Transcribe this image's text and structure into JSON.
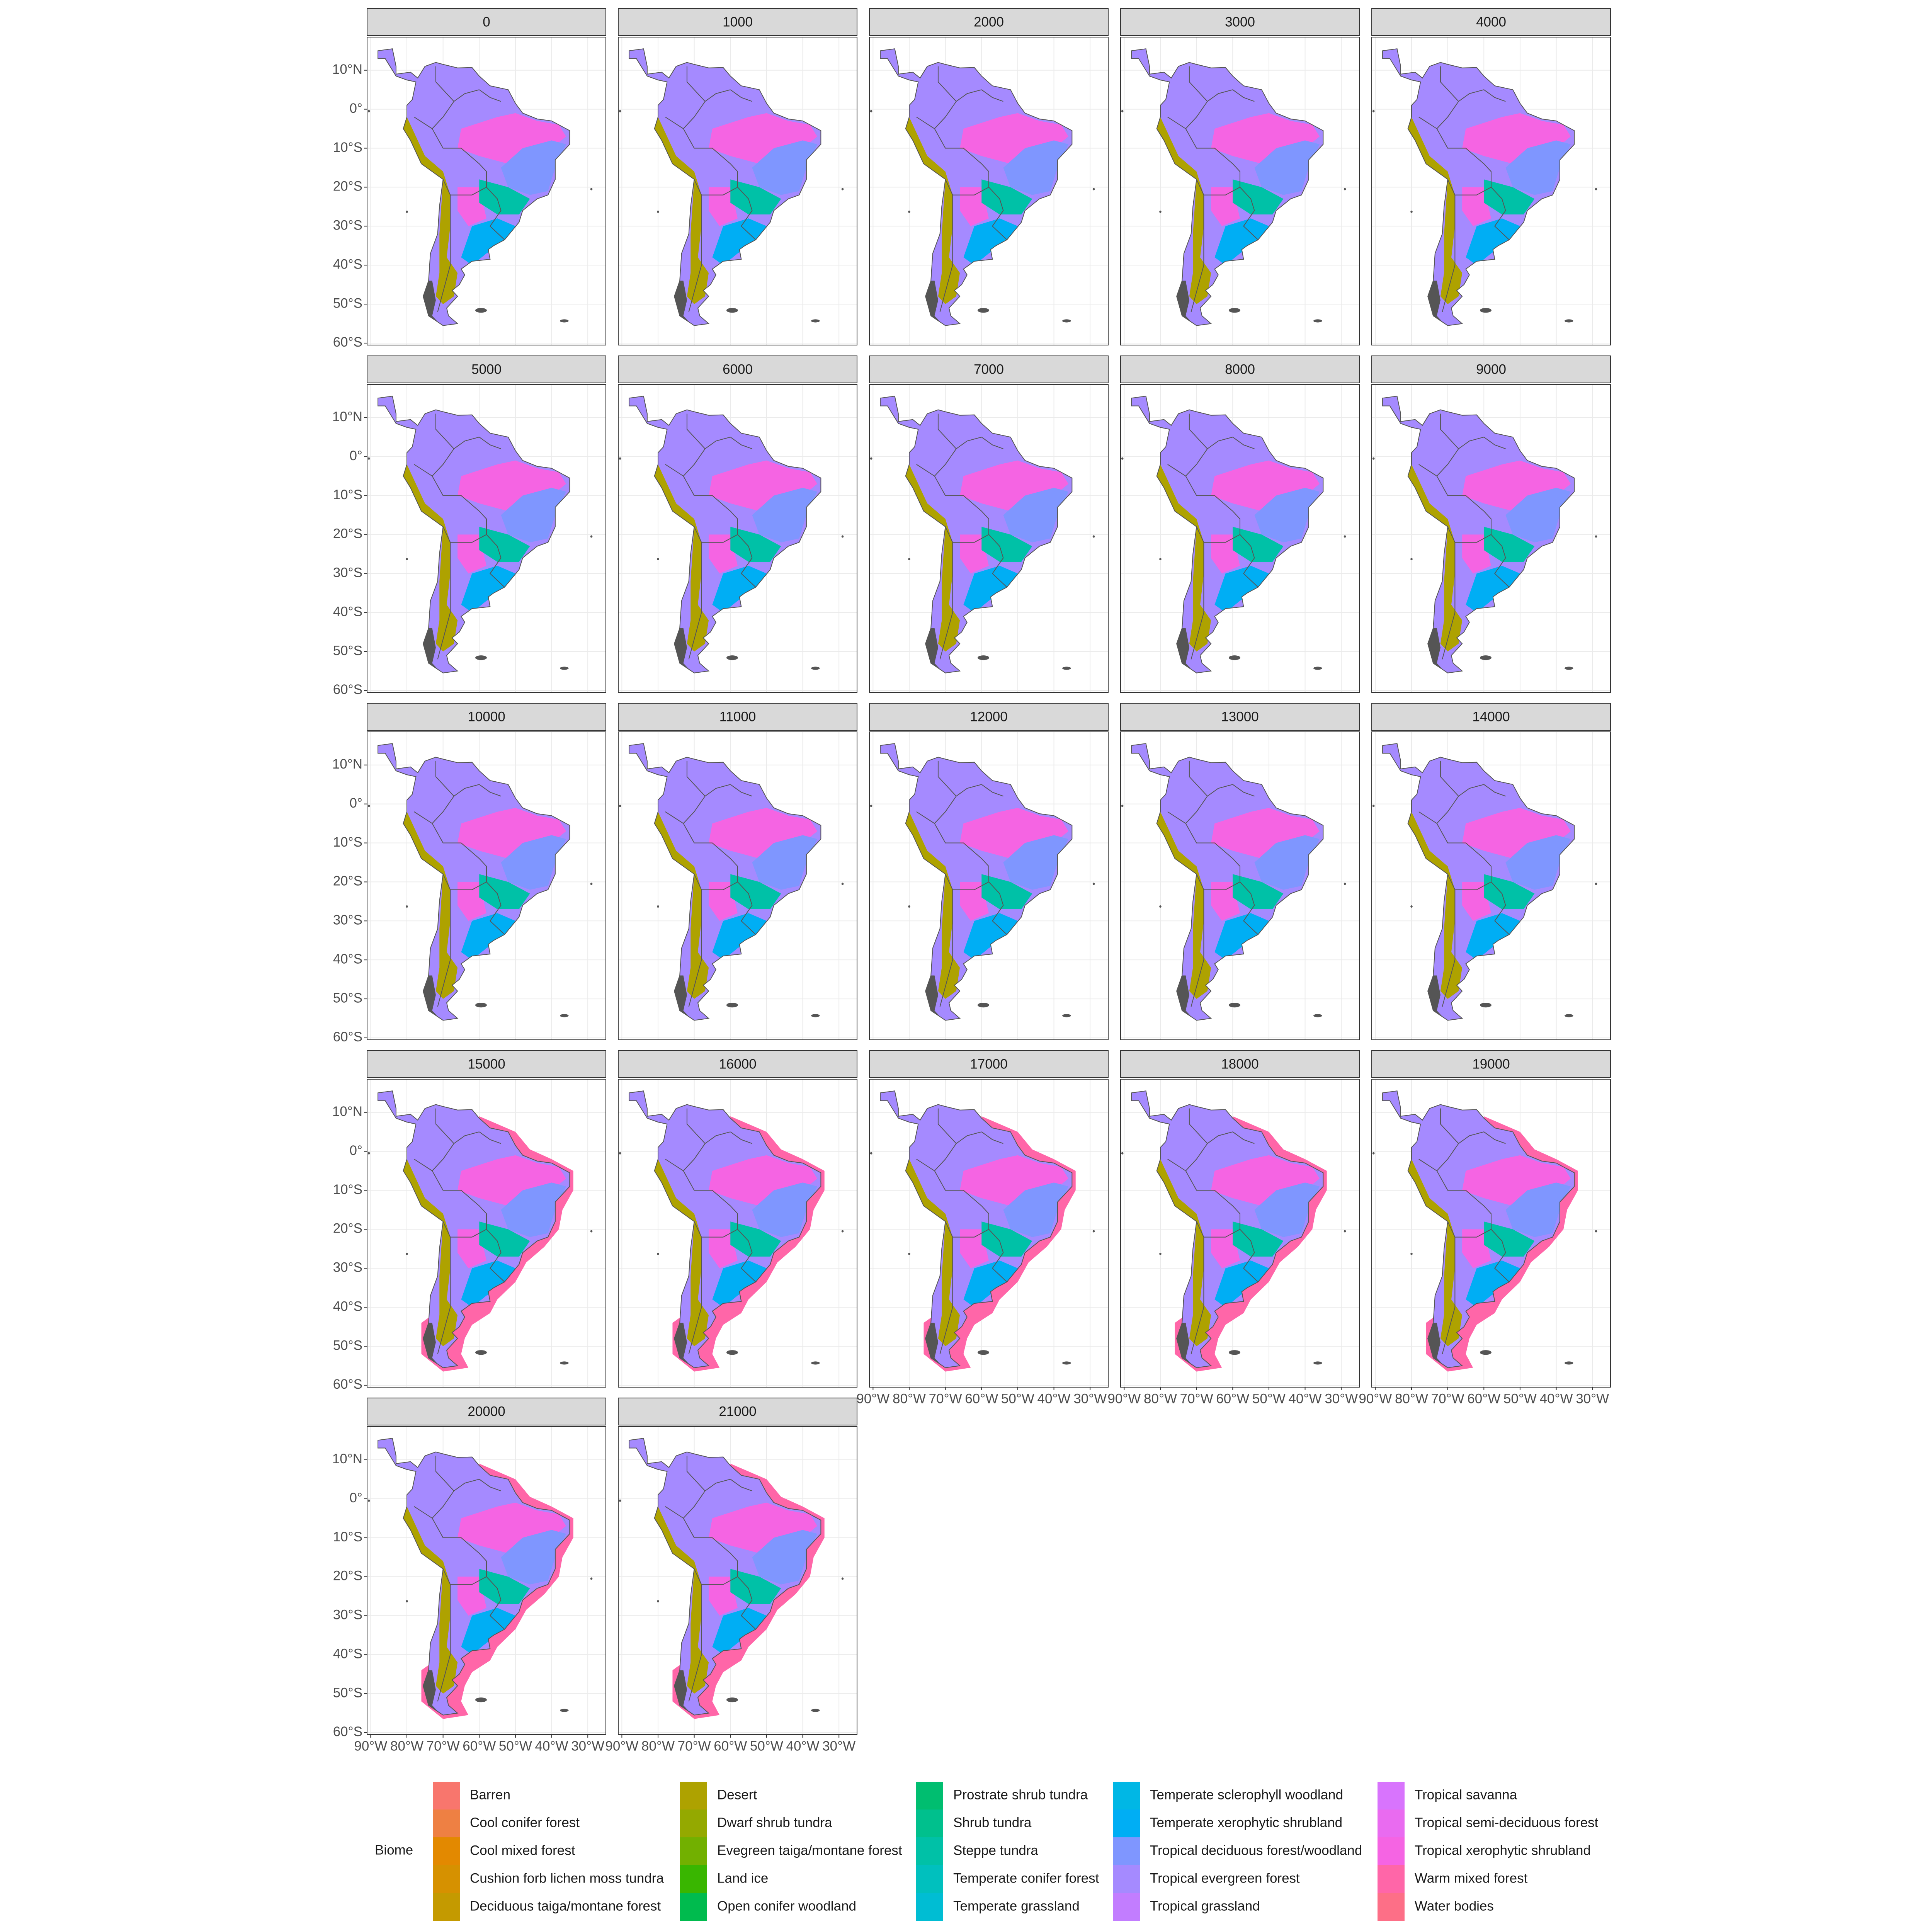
{
  "chart_data": {
    "type": "facet-map",
    "facets": [
      "0",
      "1000",
      "2000",
      "3000",
      "4000",
      "5000",
      "6000",
      "7000",
      "8000",
      "9000",
      "10000",
      "11000",
      "12000",
      "13000",
      "14000",
      "15000",
      "16000",
      "17000",
      "18000",
      "19000",
      "20000",
      "21000"
    ],
    "xlim": [
      -91,
      -25
    ],
    "ylim": [
      -60.5,
      18.5
    ],
    "xticks": [
      {
        "value": -90,
        "label": "90°W"
      },
      {
        "value": -80,
        "label": "80°W"
      },
      {
        "value": -70,
        "label": "70°W"
      },
      {
        "value": -60,
        "label": "60°W"
      },
      {
        "value": -50,
        "label": "50°W"
      },
      {
        "value": -40,
        "label": "40°W"
      },
      {
        "value": -30,
        "label": "30°W"
      }
    ],
    "yticks": [
      {
        "value": 10,
        "label": "10°N"
      },
      {
        "value": 0,
        "label": "0°"
      },
      {
        "value": -10,
        "label": "10°S"
      },
      {
        "value": -20,
        "label": "20°S"
      },
      {
        "value": -30,
        "label": "30°S"
      },
      {
        "value": -40,
        "label": "40°S"
      },
      {
        "value": -50,
        "label": "50°S"
      },
      {
        "value": -60,
        "label": "60°S"
      }
    ],
    "grid": true,
    "legend_title": "Biome",
    "legend": [
      {
        "name": "Barren",
        "color": "#F8766D"
      },
      {
        "name": "Cool conifer forest",
        "color": "#EE8043"
      },
      {
        "name": "Cool mixed forest",
        "color": "#E38900"
      },
      {
        "name": "Cushion forb lichen moss tundra",
        "color": "#D69100"
      },
      {
        "name": "Deciduous taiga/montane forest",
        "color": "#C49A00"
      },
      {
        "name": "Desert",
        "color": "#AEA200"
      },
      {
        "name": "Dwarf shrub tundra",
        "color": "#94A900"
      },
      {
        "name": "Evegreen taiga/montane forest",
        "color": "#72B000"
      },
      {
        "name": "Land ice",
        "color": "#39B600"
      },
      {
        "name": "Open conifer woodland",
        "color": "#00BB4E"
      },
      {
        "name": "Prostrate shrub tundra",
        "color": "#00BE70"
      },
      {
        "name": "Shrub tundra",
        "color": "#00C08D"
      },
      {
        "name": "Steppe tundra",
        "color": "#00C1A7"
      },
      {
        "name": "Temperate conifer forest",
        "color": "#00C0BE"
      },
      {
        "name": "Temperate grassland",
        "color": "#00BDD3"
      },
      {
        "name": "Temperate sclerophyll woodland",
        "color": "#00B7E5"
      },
      {
        "name": "Temperate xerophytic shrubland",
        "color": "#00AEF4"
      },
      {
        "name": "Tropical deciduous forest/woodland",
        "color": "#7F96FF"
      },
      {
        "name": "Tropical evergreen forest",
        "color": "#A58AFF"
      },
      {
        "name": "Tropical grassland",
        "color": "#C27DFF"
      },
      {
        "name": "Tropical savanna",
        "color": "#D874FD"
      },
      {
        "name": "Tropical semi-deciduous forest",
        "color": "#E96BF0"
      },
      {
        "name": "Tropical xerophytic shrubland",
        "color": "#F564E3"
      },
      {
        "name": "Warm mixed forest",
        "color": "#FF66A8"
      },
      {
        "name": "Water bodies",
        "color": "#FD6F87"
      }
    ]
  }
}
